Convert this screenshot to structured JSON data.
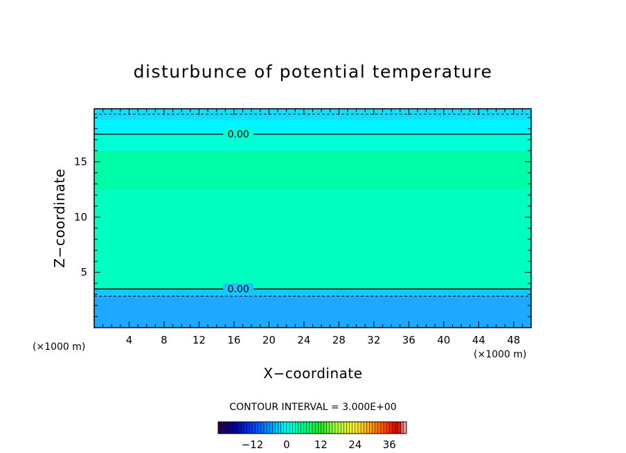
{
  "chart_data": {
    "type": "heatmap",
    "title": "disturbunce of potential temperature",
    "xlabel": "X−coordinate",
    "ylabel": "Z−coordinate",
    "x_unit": "(×1000 m)",
    "y_unit": "(×1000 m)",
    "xlim": [
      0,
      50
    ],
    "ylim": [
      0,
      19.8
    ],
    "x_ticks": [
      4,
      8,
      12,
      16,
      20,
      24,
      28,
      32,
      36,
      40,
      44,
      48
    ],
    "y_ticks": [
      5,
      10,
      15
    ],
    "layers": [
      {
        "z_from": 0,
        "z_to": 2.9,
        "value": -4.5,
        "color": "#1ea8ff"
      },
      {
        "z_from": 2.9,
        "z_to": 3.5,
        "value": -1.5,
        "color": "#19c4ff"
      },
      {
        "z_from": 3.5,
        "z_to": 12.5,
        "value": 1.5,
        "color": "#00ffc0"
      },
      {
        "z_from": 12.5,
        "z_to": 16.0,
        "value": 1.8,
        "color": "#00fca6"
      },
      {
        "z_from": 16.0,
        "z_to": 17.5,
        "value": 1.0,
        "color": "#00ffd5"
      },
      {
        "z_from": 17.5,
        "z_to": 18.8,
        "value": -1.5,
        "color": "#00f4ff"
      },
      {
        "z_from": 18.8,
        "z_to": 19.8,
        "value": -3.0,
        "color": "#14dcff"
      }
    ],
    "contours": [
      {
        "z": 17.5,
        "level": 0,
        "style": "solid",
        "label": "0.00",
        "label_x": 16.5
      },
      {
        "z": 3.5,
        "level": 0,
        "style": "solid",
        "label": "0.00",
        "label_x": 16.5
      },
      {
        "z": 2.85,
        "level": -3,
        "style": "dashed"
      },
      {
        "z": 19.3,
        "level": -3,
        "style": "dashed"
      }
    ],
    "contour_interval_text": "CONTOUR INTERVAL = 3.000E+00",
    "colorbar": {
      "min": -24,
      "max": 42,
      "ticks": [
        -12,
        0,
        12,
        24,
        36
      ]
    }
  },
  "colors": {
    "frame": "#000000",
    "background": "#ffffff"
  }
}
